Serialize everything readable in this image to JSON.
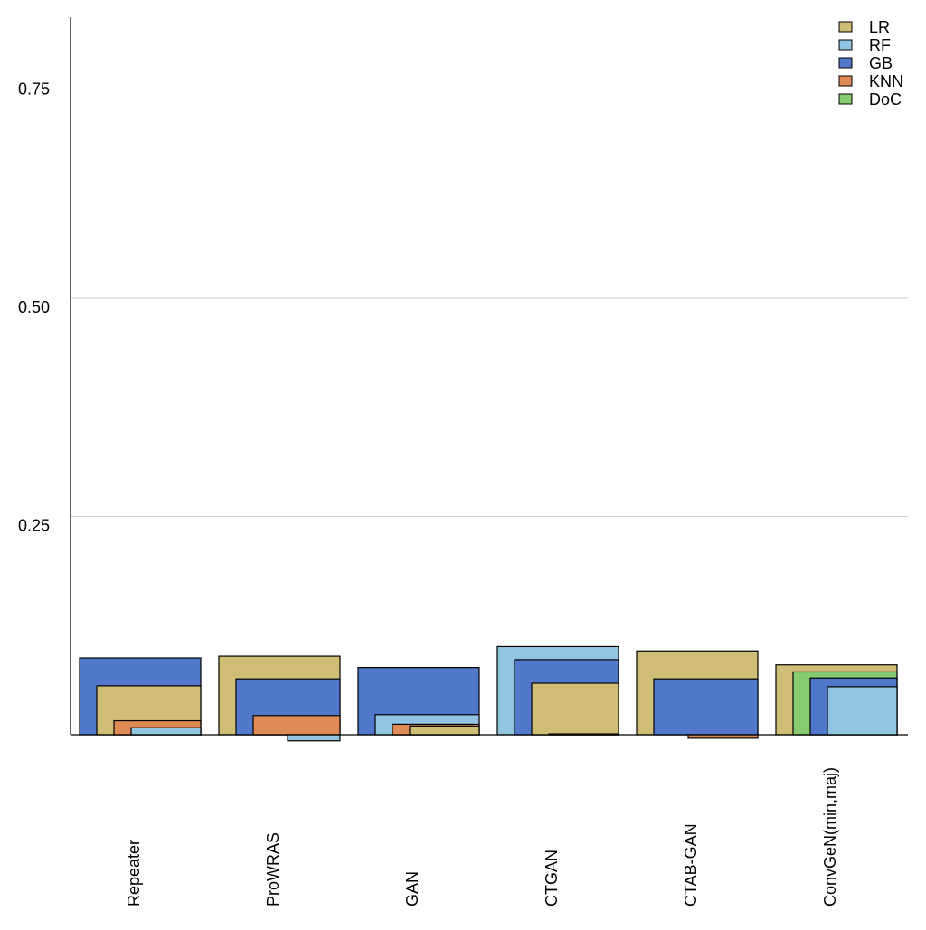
{
  "chart_data": {
    "type": "bar",
    "title": "",
    "xlabel": "",
    "ylabel": "",
    "ylim": [
      0,
      0.825
    ],
    "yticks": [
      0.25,
      0.5,
      0.75
    ],
    "ytick_labels": [
      "0.25",
      "0.50",
      "0.75"
    ],
    "grid": true,
    "legend_position": "top-right",
    "categories": [
      "Repeater",
      "ProWRAS",
      "GAN",
      "CTGAN",
      "CTAB-GAN",
      "ConvGeN(min,maj)"
    ],
    "series": [
      {
        "name": "LR",
        "color": "#d0bd76",
        "values": [
          0.056,
          0.09,
          0.01,
          0.059,
          0.096,
          0.08
        ]
      },
      {
        "name": "RF",
        "color": "#92c5e1",
        "values": [
          0.008,
          -0.007,
          0.023,
          0.101,
          null,
          0.055
        ]
      },
      {
        "name": "GB",
        "color": "#5278cb",
        "values": [
          0.088,
          0.064,
          0.077,
          0.086,
          0.064,
          0.065
        ]
      },
      {
        "name": "KNN",
        "color": "#e08a56",
        "values": [
          0.016,
          0.022,
          0.012,
          0.001,
          -0.004,
          null
        ]
      },
      {
        "name": "DoC",
        "color": "#87cb70",
        "values": [
          null,
          null,
          null,
          null,
          null,
          0.072
        ]
      }
    ]
  }
}
